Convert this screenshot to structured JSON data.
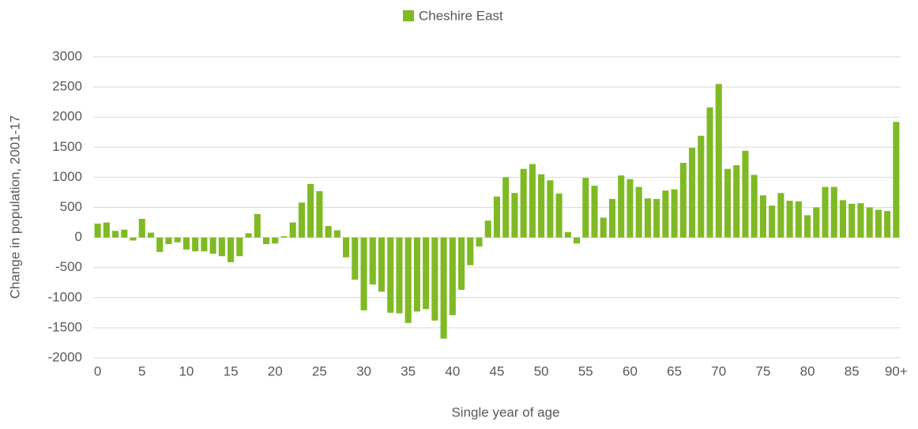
{
  "chart_data": {
    "type": "bar",
    "legend": "Cheshire East",
    "x_label": "Single year of age",
    "y_label": "Change in population, 2001-17",
    "color": "#7fba24",
    "grid": true,
    "legend_position": "top",
    "categories": [
      "0",
      null,
      null,
      null,
      null,
      "5",
      null,
      null,
      null,
      null,
      "10",
      null,
      null,
      null,
      null,
      "15",
      null,
      null,
      null,
      null,
      "20",
      null,
      null,
      null,
      null,
      "25",
      null,
      null,
      null,
      null,
      "30",
      null,
      null,
      null,
      null,
      "35",
      null,
      null,
      null,
      null,
      "40",
      null,
      null,
      null,
      null,
      "45",
      null,
      null,
      null,
      null,
      "50",
      null,
      null,
      null,
      null,
      "55",
      null,
      null,
      null,
      null,
      "60",
      null,
      null,
      null,
      null,
      "65",
      null,
      null,
      null,
      null,
      "70",
      null,
      null,
      null,
      null,
      "75",
      null,
      null,
      null,
      null,
      "80",
      null,
      null,
      null,
      null,
      "85",
      null,
      null,
      null,
      null,
      "90+"
    ],
    "values": [
      230,
      250,
      110,
      130,
      -50,
      310,
      80,
      -240,
      -110,
      -80,
      -200,
      -230,
      -230,
      -270,
      -310,
      -410,
      -310,
      70,
      390,
      -110,
      -100,
      20,
      250,
      580,
      890,
      770,
      190,
      120,
      -330,
      -700,
      -1210,
      -780,
      -900,
      -1250,
      -1260,
      -1420,
      -1230,
      -1190,
      -1380,
      -1680,
      -1290,
      -870,
      -460,
      -150,
      280,
      680,
      1000,
      740,
      1140,
      1220,
      1050,
      950,
      730,
      90,
      -100,
      990,
      860,
      330,
      640,
      1030,
      970,
      840,
      650,
      640,
      780,
      800,
      1240,
      1490,
      1690,
      2160,
      2550,
      1140,
      1200,
      1440,
      1040,
      700,
      530,
      740,
      610,
      600,
      370,
      500,
      840,
      840,
      620,
      560,
      570,
      500,
      460,
      440,
      1920
    ],
    "ylim": [
      -2000,
      3000
    ],
    "yticks": [
      -2000,
      -1500,
      -1000,
      -500,
      0,
      500,
      1000,
      1500,
      2000,
      2500,
      3000
    ]
  }
}
